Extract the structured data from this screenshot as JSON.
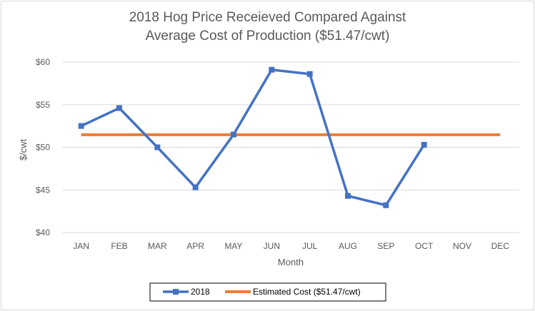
{
  "chart_data": {
    "type": "line",
    "title_line1": "2018 Hog Price Receieved Compared Against",
    "title_line2": "Average Cost of Production ($51.47/cwt)",
    "xlabel": "Month",
    "ylabel": "$/cwt",
    "categories": [
      "JAN",
      "FEB",
      "MAR",
      "APR",
      "MAY",
      "JUN",
      "JUL",
      "AUG",
      "SEP",
      "OCT",
      "NOV",
      "DEC"
    ],
    "y_ticks": [
      40,
      45,
      50,
      55,
      60
    ],
    "y_tick_labels": [
      "$40",
      "$45",
      "$50",
      "$55",
      "$60"
    ],
    "ylim": [
      40,
      60
    ],
    "grid": true,
    "legend_position": "bottom",
    "series": [
      {
        "name": "2018",
        "color": "#4472c4",
        "marker": "square",
        "values": [
          52.5,
          54.6,
          50.0,
          45.3,
          51.5,
          59.1,
          58.6,
          44.3,
          43.2,
          50.3,
          null,
          null
        ]
      },
      {
        "name": "Estimated Cost ($51.47/cwt)",
        "color": "#ed7d31",
        "marker": "none",
        "values": [
          51.47,
          51.47,
          51.47,
          51.47,
          51.47,
          51.47,
          51.47,
          51.47,
          51.47,
          51.47,
          51.47,
          51.47
        ]
      }
    ]
  }
}
